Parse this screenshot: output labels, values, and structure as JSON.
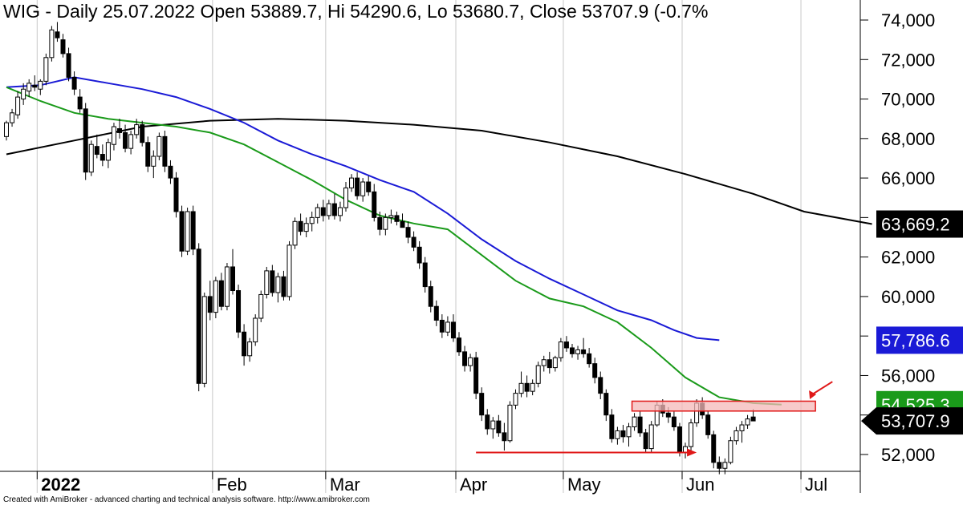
{
  "header": {
    "title": "WIG - Daily 25.07.2022 Open 53889.7, Hi 54290.6, Lo 53680.7, Close 53707.9 (-0.7%"
  },
  "footer": {
    "text": "Created with AmiBroker - advanced charting and technical analysis software. http://www.amibroker.com"
  },
  "colors": {
    "background": "#ffffff",
    "candle_up_fill": "#ffffff",
    "candle_down_fill": "#000000",
    "ma_short": "#1a9a1a",
    "ma_medium": "#1a1ad6",
    "ma_long": "#000000",
    "annotation": "#e01818",
    "zone_fill": "#f4b8b8"
  },
  "chart_data": {
    "type": "candlestick",
    "instrument": "WIG",
    "timeframe": "Daily",
    "ylim": [
      50800,
      75000
    ],
    "yticks": [
      {
        "value": 52000,
        "label": "52,000"
      },
      {
        "value": 54000,
        "label": "54,000"
      },
      {
        "value": 56000,
        "label": "56,000"
      },
      {
        "value": 58000,
        "label": "58,000"
      },
      {
        "value": 60000,
        "label": "60,000"
      },
      {
        "value": 62000,
        "label": "62,000"
      },
      {
        "value": 64000,
        "label": "64,000"
      },
      {
        "value": 66000,
        "label": "66,000"
      },
      {
        "value": 68000,
        "label": "68,000"
      },
      {
        "value": 70000,
        "label": "70,000"
      },
      {
        "value": 72000,
        "label": "72,000"
      },
      {
        "value": 74000,
        "label": "74,000"
      }
    ],
    "x_labels": [
      {
        "bar": 6,
        "label": "2022",
        "bold": true
      },
      {
        "bar": 37,
        "label": "Feb"
      },
      {
        "bar": 57,
        "label": "Mar"
      },
      {
        "bar": 80,
        "label": "Apr"
      },
      {
        "bar": 99,
        "label": "May"
      },
      {
        "bar": 120,
        "label": "Jun"
      },
      {
        "bar": 141,
        "label": "Jul"
      }
    ],
    "candles": [
      [
        0,
        68100,
        68900,
        67900,
        68800
      ],
      [
        1,
        68800,
        69500,
        68600,
        69300
      ],
      [
        2,
        69200,
        70400,
        69000,
        70100
      ],
      [
        3,
        70000,
        70800,
        69700,
        70500
      ],
      [
        4,
        70400,
        71000,
        70100,
        70800
      ],
      [
        5,
        70700,
        71200,
        70400,
        70600
      ],
      [
        6,
        70500,
        71000,
        70200,
        70900
      ],
      [
        7,
        70900,
        72300,
        70700,
        72100
      ],
      [
        8,
        72100,
        73700,
        71900,
        73500
      ],
      [
        9,
        73400,
        73900,
        72900,
        73100
      ],
      [
        10,
        73000,
        73300,
        72100,
        72300
      ],
      [
        11,
        72300,
        72600,
        70900,
        71100
      ],
      [
        12,
        71100,
        71400,
        70200,
        70500
      ],
      [
        13,
        70100,
        70500,
        69300,
        69500
      ],
      [
        14,
        69500,
        69800,
        65900,
        66300
      ],
      [
        15,
        66300,
        67900,
        66100,
        67700
      ],
      [
        16,
        67600,
        68200,
        67000,
        67200
      ],
      [
        17,
        67200,
        67700,
        66600,
        66900
      ],
      [
        18,
        66900,
        68000,
        66500,
        67800
      ],
      [
        19,
        67700,
        68800,
        67400,
        68600
      ],
      [
        20,
        68500,
        69000,
        68000,
        68300
      ],
      [
        21,
        68300,
        68700,
        67300,
        67500
      ],
      [
        22,
        67500,
        68400,
        67200,
        68200
      ],
      [
        23,
        68200,
        69000,
        68000,
        68700
      ],
      [
        24,
        68700,
        68900,
        67600,
        67800
      ],
      [
        25,
        67800,
        68100,
        66300,
        66600
      ],
      [
        26,
        66600,
        67400,
        66000,
        67100
      ],
      [
        27,
        67100,
        68300,
        66900,
        68100
      ],
      [
        28,
        68100,
        68400,
        66300,
        66600
      ],
      [
        29,
        66600,
        66900,
        65700,
        66000
      ],
      [
        30,
        66000,
        66300,
        64000,
        64300
      ],
      [
        31,
        64300,
        64600,
        62000,
        62300
      ],
      [
        32,
        62300,
        64500,
        62100,
        64300
      ],
      [
        33,
        64300,
        64600,
        62100,
        62400
      ],
      [
        34,
        62400,
        62700,
        55200,
        55600
      ],
      [
        35,
        55600,
        60200,
        55400,
        60000
      ],
      [
        36,
        60000,
        60800,
        58800,
        59200
      ],
      [
        37,
        59200,
        61000,
        58900,
        60800
      ],
      [
        38,
        60800,
        61200,
        59300,
        59500
      ],
      [
        39,
        59500,
        61700,
        59300,
        61500
      ],
      [
        40,
        61500,
        62400,
        60100,
        60300
      ],
      [
        41,
        60300,
        60600,
        57900,
        58200
      ],
      [
        42,
        58200,
        58600,
        56500,
        57000
      ],
      [
        43,
        57000,
        57900,
        56700,
        57700
      ],
      [
        44,
        57700,
        59100,
        57500,
        58900
      ],
      [
        45,
        58900,
        60300,
        58700,
        60100
      ],
      [
        46,
        60100,
        61500,
        59900,
        61300
      ],
      [
        47,
        61300,
        61600,
        60000,
        60200
      ],
      [
        48,
        60200,
        61200,
        59700,
        61000
      ],
      [
        49,
        61000,
        61300,
        59800,
        60000
      ],
      [
        50,
        60000,
        62800,
        59800,
        62600
      ],
      [
        51,
        62600,
        64000,
        62400,
        63800
      ],
      [
        52,
        63800,
        64200,
        63100,
        63300
      ],
      [
        53,
        63300,
        64000,
        63000,
        63700
      ],
      [
        54,
        63700,
        64300,
        63300,
        64000
      ],
      [
        55,
        64000,
        64700,
        63700,
        64500
      ],
      [
        56,
        64500,
        64900,
        63800,
        64100
      ],
      [
        57,
        64100,
        64900,
        63900,
        64700
      ],
      [
        58,
        64700,
        65200,
        63900,
        64100
      ],
      [
        59,
        64100,
        64800,
        63800,
        64500
      ],
      [
        60,
        64500,
        65800,
        64300,
        65500
      ],
      [
        61,
        65500,
        66200,
        65300,
        66000
      ],
      [
        62,
        66000,
        66300,
        64900,
        65100
      ],
      [
        63,
        65100,
        66000,
        64800,
        65800
      ],
      [
        64,
        65800,
        66100,
        65100,
        65300
      ],
      [
        65,
        65300,
        65700,
        63800,
        64000
      ],
      [
        66,
        64000,
        64300,
        63100,
        63400
      ],
      [
        67,
        63400,
        64200,
        63100,
        64000
      ],
      [
        68,
        64000,
        64400,
        63700,
        64100
      ],
      [
        69,
        64100,
        64300,
        63600,
        63800
      ],
      [
        70,
        63800,
        64200,
        63500,
        63500
      ],
      [
        71,
        63500,
        63800,
        62700,
        63000
      ],
      [
        72,
        63000,
        63300,
        62300,
        62500
      ],
      [
        73,
        62500,
        62800,
        61400,
        61700
      ],
      [
        74,
        61700,
        62000,
        60200,
        60500
      ],
      [
        75,
        60500,
        60800,
        59200,
        59500
      ],
      [
        76,
        59500,
        59800,
        58500,
        58800
      ],
      [
        77,
        58800,
        59100,
        57900,
        58200
      ],
      [
        78,
        58200,
        59000,
        58000,
        58700
      ],
      [
        79,
        58700,
        59100,
        57700,
        57900
      ],
      [
        80,
        57900,
        58200,
        57000,
        57200
      ],
      [
        81,
        57200,
        57500,
        56200,
        56500
      ],
      [
        82,
        56500,
        57100,
        56200,
        56900
      ],
      [
        83,
        56900,
        57200,
        54800,
        55100
      ],
      [
        84,
        55100,
        55400,
        53700,
        54000
      ],
      [
        85,
        54000,
        54300,
        53000,
        53300
      ],
      [
        86,
        53300,
        53900,
        52800,
        53700
      ],
      [
        87,
        53700,
        54000,
        52900,
        53100
      ],
      [
        88,
        53100,
        53600,
        52200,
        52700
      ],
      [
        89,
        52700,
        54700,
        52600,
        54500
      ],
      [
        90,
        54500,
        55300,
        54300,
        55100
      ],
      [
        91,
        55100,
        56200,
        54900,
        55600
      ],
      [
        92,
        55600,
        56000,
        54900,
        55200
      ],
      [
        93,
        55200,
        55800,
        55000,
        55600
      ],
      [
        94,
        55600,
        56700,
        55400,
        56500
      ],
      [
        95,
        56500,
        57000,
        56200,
        56800
      ],
      [
        96,
        56800,
        57200,
        56100,
        56400
      ],
      [
        97,
        56400,
        57000,
        56200,
        56900
      ],
      [
        98,
        56900,
        57900,
        56700,
        57700
      ],
      [
        99,
        57700,
        58000,
        57200,
        57400
      ],
      [
        100,
        57400,
        57600,
        56900,
        57100
      ],
      [
        101,
        57100,
        57500,
        56800,
        57300
      ],
      [
        102,
        57300,
        57900,
        56900,
        57100
      ],
      [
        103,
        57100,
        57400,
        56400,
        56600
      ],
      [
        104,
        56600,
        56900,
        55600,
        55900
      ],
      [
        105,
        55900,
        56200,
        54800,
        55100
      ],
      [
        106,
        55100,
        55300,
        53700,
        54000
      ],
      [
        107,
        54000,
        54300,
        52600,
        52800
      ],
      [
        108,
        52800,
        53400,
        52500,
        53200
      ],
      [
        109,
        53200,
        53500,
        52600,
        52900
      ],
      [
        110,
        52900,
        53600,
        52400,
        53400
      ],
      [
        111,
        53400,
        54100,
        53200,
        53900
      ],
      [
        112,
        53900,
        54200,
        52900,
        53100
      ],
      [
        113,
        53100,
        53300,
        52100,
        52300
      ],
      [
        114,
        52300,
        53700,
        52100,
        53500
      ],
      [
        115,
        53500,
        54700,
        53400,
        54500
      ],
      [
        116,
        54500,
        54800,
        53900,
        54100
      ],
      [
        117,
        54100,
        54400,
        53600,
        53900
      ],
      [
        118,
        53900,
        54200,
        53200,
        53400
      ],
      [
        119,
        53400,
        53600,
        51900,
        52100
      ],
      [
        120,
        52100,
        52600,
        51800,
        52400
      ],
      [
        121,
        52400,
        53800,
        52200,
        53600
      ],
      [
        122,
        53600,
        54800,
        53400,
        54600
      ],
      [
        123,
        54600,
        54900,
        53800,
        54000
      ],
      [
        124,
        54000,
        54200,
        52800,
        53000
      ],
      [
        125,
        53000,
        53200,
        51300,
        51600
      ],
      [
        126,
        51600,
        51900,
        51000,
        51300
      ],
      [
        127,
        51300,
        51800,
        51000,
        51600
      ],
      [
        128,
        51600,
        52900,
        51500,
        52700
      ],
      [
        129,
        52700,
        53400,
        52500,
        53200
      ],
      [
        130,
        53200,
        53700,
        52600,
        53500
      ],
      [
        131,
        53500,
        54000,
        53300,
        53800
      ],
      [
        132,
        53900,
        54300,
        53700,
        53700
      ]
    ],
    "moving_averages": [
      {
        "color": "#000000",
        "label": "63,669.2",
        "points": [
          [
            0,
            67200
          ],
          [
            12,
            67900
          ],
          [
            24,
            68600
          ],
          [
            36,
            68900
          ],
          [
            48,
            69000
          ],
          [
            60,
            68900
          ],
          [
            72,
            68700
          ],
          [
            84,
            68400
          ],
          [
            96,
            67800
          ],
          [
            108,
            67100
          ],
          [
            120,
            66200
          ],
          [
            132,
            65200
          ],
          [
            141,
            64300
          ],
          [
            153,
            63669
          ]
        ]
      },
      {
        "color": "#1a1ad6",
        "label": "57,786.6",
        "points": [
          [
            0,
            70600
          ],
          [
            6,
            70700
          ],
          [
            12,
            71100
          ],
          [
            18,
            70800
          ],
          [
            24,
            70500
          ],
          [
            30,
            70100
          ],
          [
            36,
            69500
          ],
          [
            42,
            68800
          ],
          [
            48,
            67900
          ],
          [
            54,
            67200
          ],
          [
            60,
            66600
          ],
          [
            66,
            65900
          ],
          [
            72,
            65300
          ],
          [
            78,
            64200
          ],
          [
            84,
            62900
          ],
          [
            90,
            61800
          ],
          [
            96,
            60900
          ],
          [
            102,
            60100
          ],
          [
            108,
            59300
          ],
          [
            114,
            58800
          ],
          [
            118,
            58300
          ],
          [
            122,
            57900
          ],
          [
            126,
            57787
          ]
        ]
      },
      {
        "color": "#1a9a1a",
        "label": "54,525.3",
        "points": [
          [
            0,
            70600
          ],
          [
            6,
            69900
          ],
          [
            12,
            69300
          ],
          [
            18,
            69000
          ],
          [
            24,
            68800
          ],
          [
            30,
            68600
          ],
          [
            36,
            68300
          ],
          [
            42,
            67700
          ],
          [
            48,
            66800
          ],
          [
            54,
            65900
          ],
          [
            60,
            64900
          ],
          [
            66,
            64100
          ],
          [
            72,
            63700
          ],
          [
            78,
            63400
          ],
          [
            84,
            62100
          ],
          [
            90,
            60800
          ],
          [
            96,
            59900
          ],
          [
            102,
            59500
          ],
          [
            108,
            58700
          ],
          [
            114,
            57400
          ],
          [
            120,
            55900
          ],
          [
            126,
            54900
          ],
          [
            132,
            54600
          ],
          [
            137,
            54525
          ]
        ]
      }
    ],
    "last_close_label": "53,707.9",
    "annotations": {
      "zone": {
        "bar_start": 111,
        "bar_end": 143,
        "low": 54200,
        "high": 54700
      },
      "support_arrow": {
        "bar_start": 83,
        "bar_end": 122,
        "value": 52100
      },
      "down_arrow": {
        "bar_start": 146,
        "bar_end": 142,
        "value_start": 55200,
        "value_end": 54800
      }
    }
  }
}
